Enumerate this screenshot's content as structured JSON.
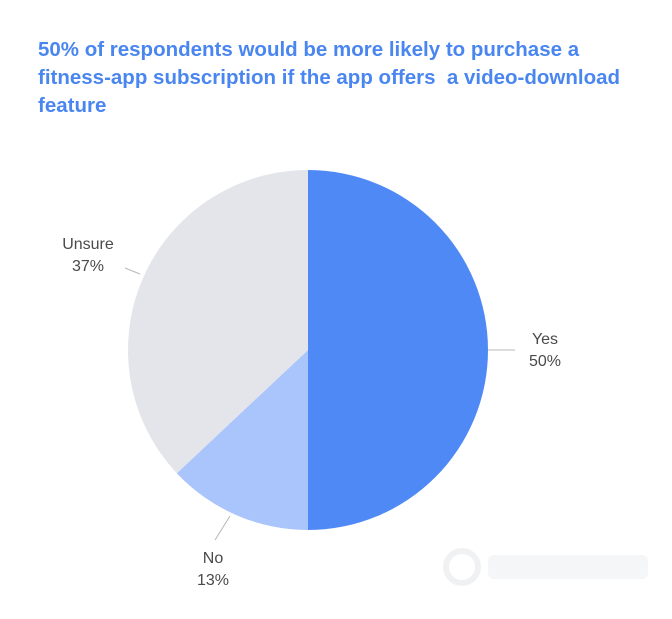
{
  "chart_data": {
    "type": "pie",
    "title": "50% of respondents would be more likely to purchase a fitness-app subscription if the app offers  a video-download feature",
    "slices": [
      {
        "name": "Yes",
        "value": 50,
        "label": "50%",
        "color": "#4f89f5"
      },
      {
        "name": "No",
        "value": 13,
        "label": "13%",
        "color": "#aac5fb"
      },
      {
        "name": "Unsure",
        "value": 37,
        "label": "37%",
        "color": "#e3e5ea"
      }
    ],
    "start_angle_deg": 0,
    "direction": "clockwise",
    "legend": "none",
    "label_style": "outside with leader lines"
  }
}
